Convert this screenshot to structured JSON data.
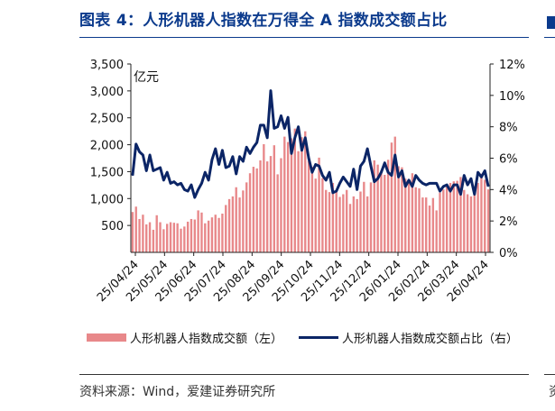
{
  "title": "图表 4：人形机器人指数在万得全 A 指数成交额占比",
  "source": "资料来源：Wind，爱建证券研究所",
  "colors": {
    "bar": "#e8888a",
    "line": "#0b2566",
    "title": "#0b3a8c"
  },
  "legend": {
    "bar_label": "人形机器人指数成交额（左）",
    "line_label": "人形机器人指数成交额占比（右）"
  },
  "chart_data": {
    "type": "bar+line",
    "unit_label": "亿元",
    "x_ticks": [
      "25/04/24",
      "25/05/24",
      "25/06/24",
      "25/07/24",
      "25/08/24",
      "25/09/24",
      "25/10/24",
      "25/11/24",
      "25/12/24",
      "26/01/24",
      "26/02/24",
      "26/03/24",
      "26/04/24"
    ],
    "y_left": {
      "min": 0,
      "max": 3500,
      "ticks": [
        500,
        1000,
        1500,
        2000,
        2500,
        3000,
        3500
      ]
    },
    "y_right": {
      "min": 0,
      "max": 12,
      "ticks": [
        0,
        2,
        4,
        6,
        8,
        10,
        12
      ],
      "suffix": "%"
    },
    "bars_sampled_every_3_days_from_25-04-24": [
      750,
      850,
      620,
      700,
      520,
      560,
      420,
      690,
      560,
      430,
      530,
      560,
      550,
      540,
      440,
      480,
      570,
      620,
      610,
      780,
      740,
      540,
      590,
      650,
      700,
      640,
      720,
      880,
      990,
      1040,
      1210,
      1020,
      1150,
      1300,
      1470,
      1590,
      1560,
      1710,
      2010,
      1690,
      1790,
      1990,
      1450,
      1750,
      2150,
      2050,
      2120,
      2300,
      1880,
      2140,
      2250,
      1700,
      1590,
      1370,
      1760,
      1380,
      1160,
      1120,
      1290,
      1160,
      1030,
      1080,
      1160,
      900,
      1040,
      990,
      1130,
      1310,
      1040,
      1300,
      1710,
      1630,
      1520,
      1440,
      1720,
      2040,
      2150,
      1600,
      1580,
      1370,
      1320,
      1470,
      1210,
      1190,
      1020,
      1020,
      870,
      1010,
      780,
      1110,
      1170,
      1260,
      1290,
      1320,
      1330,
      1400,
      1160,
      1080,
      1040,
      1080,
      1290,
      1460,
      1350,
      1170
    ],
    "line_pct_sampled_every_3_days_from_25-04-24": [
      4.9,
      6.9,
      6.4,
      6.2,
      5.2,
      6.2,
      5.2,
      5.3,
      5.4,
      4.6,
      5.1,
      4.4,
      4.5,
      4.3,
      4.4,
      4.0,
      3.9,
      4.3,
      3.5,
      4.0,
      4.4,
      5.1,
      4.6,
      5.9,
      6.6,
      5.6,
      6.5,
      5.4,
      5.5,
      6.1,
      5.0,
      6.1,
      5.8,
      6.7,
      6.3,
      6.7,
      7.0,
      8.1,
      8.1,
      7.3,
      10.3,
      7.9,
      8.0,
      8.7,
      7.9,
      8.6,
      6.3,
      7.3,
      8.0,
      6.5,
      7.3,
      6.0,
      5.1,
      5.6,
      5.5,
      4.9,
      4.6,
      5.1,
      3.8,
      3.9,
      4.4,
      4.8,
      4.5,
      4.2,
      5.3,
      4.0,
      5.5,
      5.8,
      6.6,
      5.5,
      4.5,
      4.7,
      5.1,
      5.7,
      5.1,
      4.9,
      6.2,
      4.8,
      5.2,
      4.2,
      4.6,
      4.2,
      4.9,
      4.6,
      4.4,
      4.3,
      4.4,
      4.4,
      4.4,
      3.9,
      4.2,
      4.3,
      3.9,
      4.3,
      4.3,
      3.7,
      4.9,
      4.3,
      4.7,
      3.7,
      5.1,
      4.8,
      5.2,
      4.2
    ]
  }
}
